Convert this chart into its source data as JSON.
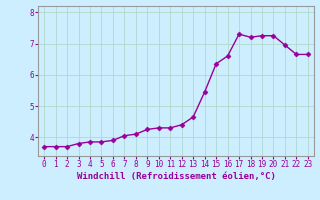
{
  "x": [
    0,
    1,
    2,
    3,
    4,
    5,
    6,
    7,
    8,
    9,
    10,
    11,
    12,
    13,
    14,
    15,
    16,
    17,
    18,
    19,
    20,
    21,
    22,
    23
  ],
  "y": [
    3.7,
    3.7,
    3.7,
    3.8,
    3.85,
    3.85,
    3.9,
    4.05,
    4.1,
    4.25,
    4.3,
    4.3,
    4.4,
    4.65,
    5.45,
    6.35,
    6.6,
    7.3,
    7.2,
    7.25,
    7.25,
    6.95,
    6.65,
    6.65
  ],
  "line_color": "#990099",
  "marker": "D",
  "markersize": 2.5,
  "linewidth": 1.0,
  "bg_color": "#cceeff",
  "grid_color": "#aaddcc",
  "xlabel": "Windchill (Refroidissement éolien,°C)",
  "xlabel_color": "#990099",
  "tick_color": "#990099",
  "spine_color": "#999999",
  "ylim": [
    3.4,
    8.2
  ],
  "xlim": [
    -0.5,
    23.5
  ],
  "yticks": [
    4,
    5,
    6,
    7,
    8
  ],
  "xticks": [
    0,
    1,
    2,
    3,
    4,
    5,
    6,
    7,
    8,
    9,
    10,
    11,
    12,
    13,
    14,
    15,
    16,
    17,
    18,
    19,
    20,
    21,
    22,
    23
  ],
  "xtick_labels": [
    "0",
    "1",
    "2",
    "3",
    "4",
    "5",
    "6",
    "7",
    "8",
    "9",
    "10",
    "11",
    "12",
    "13",
    "14",
    "15",
    "16",
    "17",
    "18",
    "19",
    "20",
    "21",
    "22",
    "23"
  ],
  "tick_fontsize": 5.5,
  "xlabel_fontsize": 6.5
}
